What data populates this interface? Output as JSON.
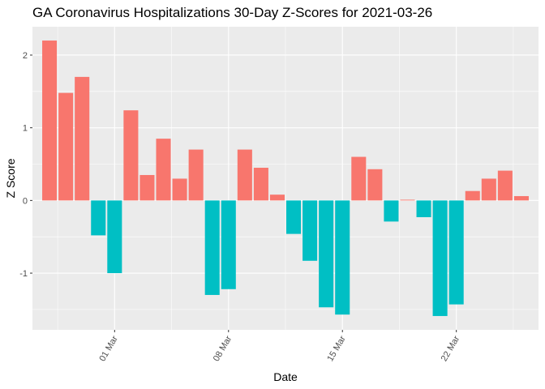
{
  "chart_data": {
    "type": "bar",
    "title": "GA Coronavirus Hospitalizations 30-Day Z-Scores for 2021-03-26",
    "xlabel": "Date",
    "ylabel": "Z Score",
    "x_dates": [
      "2021-02-25",
      "2021-02-26",
      "2021-02-27",
      "2021-02-28",
      "2021-03-01",
      "2021-03-02",
      "2021-03-03",
      "2021-03-04",
      "2021-03-05",
      "2021-03-06",
      "2021-03-07",
      "2021-03-08",
      "2021-03-09",
      "2021-03-10",
      "2021-03-11",
      "2021-03-12",
      "2021-03-13",
      "2021-03-14",
      "2021-03-15",
      "2021-03-16",
      "2021-03-17",
      "2021-03-18",
      "2021-03-19",
      "2021-03-20",
      "2021-03-21",
      "2021-03-22",
      "2021-03-23",
      "2021-03-24",
      "2021-03-25",
      "2021-03-26"
    ],
    "values": [
      2.2,
      1.48,
      1.7,
      -0.48,
      -1.0,
      1.24,
      0.35,
      0.85,
      0.3,
      0.7,
      -1.3,
      -1.22,
      0.7,
      0.45,
      0.08,
      -0.46,
      -0.83,
      -1.47,
      -1.57,
      0.6,
      0.43,
      -0.29,
      0.01,
      -0.23,
      -1.59,
      -1.43,
      0.13,
      0.3,
      0.41,
      0.06
    ],
    "x_ticks": [
      "01 Mar",
      "08 Mar",
      "15 Mar",
      "22 Mar"
    ],
    "y_ticks": [
      -1,
      0,
      1,
      2
    ],
    "ylim": [
      -1.78,
      2.39
    ],
    "colors": {
      "positive": "#F8766D",
      "negative": "#00BFC4",
      "panel": "#EBEBEB",
      "grid": "#FFFFFF"
    }
  }
}
